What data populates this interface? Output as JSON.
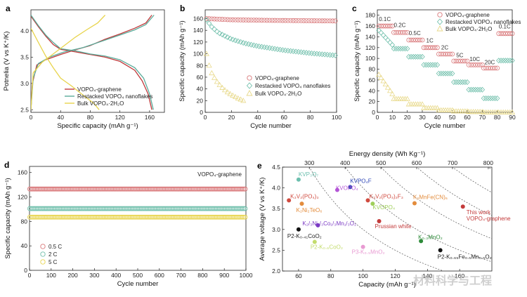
{
  "watermark": "材料科学与工程",
  "chart_data": [
    {
      "panel": "a",
      "type": "line",
      "xlabel": "Specific capacity (mAh g⁻¹)",
      "ylabel": "Potnelia (V vs K⁺/K)",
      "xlim": [
        0,
        180
      ],
      "ylim": [
        2.45,
        4.4
      ],
      "xticks": [
        "0",
        "40",
        "80",
        "120",
        "160"
      ],
      "yticks": [
        "2.5",
        "3.0",
        "3.5",
        "4.0"
      ],
      "legend_position": "bottom-right",
      "series": [
        {
          "name": "VOPO₄-graphene",
          "color": "#c0393b",
          "curves": [
            [
              [
                0,
                4.28
              ],
              [
                10,
                4.08
              ],
              [
                20,
                3.9
              ],
              [
                30,
                3.74
              ],
              [
                40,
                3.65
              ],
              [
                60,
                3.6
              ],
              [
                80,
                3.55
              ],
              [
                100,
                3.5
              ],
              [
                120,
                3.42
              ],
              [
                140,
                3.25
              ],
              [
                150,
                3.05
              ],
              [
                158,
                2.8
              ],
              [
                163,
                2.5
              ]
            ],
            [
              [
                0,
                2.5
              ],
              [
                2,
                3.0
              ],
              [
                8,
                3.35
              ],
              [
                20,
                3.45
              ],
              [
                40,
                3.55
              ],
              [
                60,
                3.64
              ],
              [
                80,
                3.72
              ],
              [
                100,
                3.84
              ],
              [
                120,
                3.94
              ],
              [
                140,
                4.05
              ],
              [
                155,
                4.15
              ],
              [
                163,
                4.3
              ]
            ]
          ]
        },
        {
          "name": "Restacked VOPO₄ nanoflakes",
          "color": "#5aab9a",
          "curves": [
            [
              [
                0,
                4.3
              ],
              [
                10,
                4.1
              ],
              [
                20,
                3.92
              ],
              [
                30,
                3.78
              ],
              [
                40,
                3.66
              ],
              [
                60,
                3.62
              ],
              [
                80,
                3.56
              ],
              [
                100,
                3.52
              ],
              [
                120,
                3.45
              ],
              [
                140,
                3.3
              ],
              [
                152,
                3.1
              ],
              [
                160,
                2.8
              ],
              [
                165,
                2.5
              ]
            ],
            [
              [
                0,
                2.5
              ],
              [
                3,
                3.1
              ],
              [
                10,
                3.38
              ],
              [
                25,
                3.5
              ],
              [
                45,
                3.6
              ],
              [
                70,
                3.68
              ],
              [
                95,
                3.8
              ],
              [
                120,
                3.92
              ],
              [
                140,
                4.02
              ],
              [
                155,
                4.12
              ],
              [
                166,
                4.3
              ]
            ]
          ]
        },
        {
          "name": "Bulk VOPO₄·2H₂O",
          "color": "#e8d44d",
          "curves": [
            [
              [
                0,
                4.05
              ],
              [
                10,
                3.78
              ],
              [
                20,
                3.52
              ],
              [
                30,
                3.3
              ],
              [
                40,
                3.1
              ],
              [
                55,
                2.95
              ],
              [
                70,
                2.78
              ],
              [
                85,
                2.62
              ],
              [
                92,
                2.5
              ]
            ],
            [
              [
                0,
                2.5
              ],
              [
                3,
                3.2
              ],
              [
                15,
                3.4
              ],
              [
                30,
                3.56
              ],
              [
                45,
                3.72
              ],
              [
                60,
                3.88
              ],
              [
                75,
                4.02
              ],
              [
                90,
                4.15
              ],
              [
                100,
                4.3
              ]
            ]
          ]
        }
      ]
    },
    {
      "panel": "b",
      "type": "scatter",
      "xlabel": "Cycle number",
      "ylabel": "Specific capacity (mAh g⁻¹)",
      "xlim": [
        0,
        100
      ],
      "ylim": [
        0,
        175
      ],
      "xticks": [
        "0",
        "20",
        "40",
        "60",
        "80",
        "100"
      ],
      "yticks": [
        "0",
        "20",
        "40",
        "60",
        "80",
        "100",
        "120",
        "140",
        "160"
      ],
      "legend_position": "center-right",
      "series": [
        {
          "name": "VOPO₄-graphene",
          "color": "#d9787a",
          "x_end": 100,
          "points": [
            [
              1,
              160
            ],
            [
              20,
              158
            ],
            [
              50,
              157
            ],
            [
              100,
              156
            ]
          ]
        },
        {
          "name": "Restacked VOPO₄ nanoflakes",
          "color": "#6fbfab",
          "x_end": 100,
          "points": [
            [
              1,
              158
            ],
            [
              5,
              146
            ],
            [
              10,
              136
            ],
            [
              20,
              125
            ],
            [
              30,
              118
            ],
            [
              40,
              113
            ],
            [
              60,
              106
            ],
            [
              80,
              101
            ],
            [
              100,
              97
            ]
          ]
        },
        {
          "name": "Bulk VOPO₄·2H₂O",
          "color": "#e8d98a",
          "x_end": 30,
          "points": [
            [
              1,
              100
            ],
            [
              3,
              80
            ],
            [
              5,
              67
            ],
            [
              8,
              55
            ],
            [
              12,
              44
            ],
            [
              16,
              36
            ],
            [
              20,
              30
            ],
            [
              25,
              24
            ],
            [
              30,
              19
            ]
          ]
        }
      ]
    },
    {
      "panel": "c",
      "type": "scatter",
      "xlabel": "Cycle number",
      "ylabel": "Specific capacity (mAh g⁻¹)",
      "xlim": [
        0,
        90
      ],
      "ylim": [
        0,
        190
      ],
      "xticks": [
        "0",
        "10",
        "20",
        "30",
        "40",
        "50",
        "60",
        "70",
        "80",
        "90"
      ],
      "yticks": [
        "0",
        "20",
        "40",
        "60",
        "80",
        "100",
        "120",
        "140",
        "160",
        "180"
      ],
      "rate_labels": [
        "0.1C",
        "0.2C",
        "0.5C",
        "1C",
        "2C",
        "5C",
        "10C",
        "20C",
        "0.1C"
      ],
      "legend_position": "top-right",
      "series": [
        {
          "name": "VOPO₄-graphene",
          "color": "#d9787a",
          "steps": [
            160,
            148,
            134,
            120,
            108,
            95,
            88,
            82,
            146
          ]
        },
        {
          "name": "Restacked VOPO₄ nanoflakes",
          "color": "#6fbfab",
          "steps": [
            152,
            118,
            103,
            88,
            72,
            56,
            42,
            26,
            96
          ]
        },
        {
          "name": "Bulk VOPO₄·2H₂O",
          "color": "#e8d98a",
          "steps": [
            70,
            25,
            15,
            8,
            4,
            2,
            1,
            0,
            0
          ]
        }
      ]
    },
    {
      "panel": "d",
      "type": "scatter",
      "title": "VOPO₄-graphene",
      "xlabel": "Cycle number",
      "ylabel": "Specific capacity (mAh g⁻¹)",
      "xlim": [
        0,
        1000
      ],
      "ylim": [
        0,
        170
      ],
      "xticks": [
        "0",
        "100",
        "200",
        "300",
        "400",
        "500",
        "600",
        "700",
        "800",
        "900",
        "1000"
      ],
      "yticks": [
        "0",
        "40",
        "80",
        "120",
        "160"
      ],
      "legend_position": "bottom-left",
      "series": [
        {
          "name": "0.5 C",
          "color": "#d9787a",
          "value": 133
        },
        {
          "name": "2 C",
          "color": "#6fbfab",
          "value": 101
        },
        {
          "name": "5 C",
          "color": "#e8d44d",
          "value": 87
        }
      ]
    },
    {
      "panel": "e",
      "type": "scatter",
      "xlabel": "Capacity (mAh g⁻¹)",
      "ylabel": "Average voltage (V vs K⁺/K)",
      "x2label": "Energy density (Wh Kg⁻¹)",
      "xlim": [
        50,
        180
      ],
      "ylim": [
        2.0,
        4.5
      ],
      "xticks": [
        "60",
        "80",
        "100",
        "120",
        "140",
        "160"
      ],
      "yticks": [
        "2.0",
        "2.5",
        "3.0",
        "3.5",
        "4.0",
        "4.5"
      ],
      "x2ticks": [
        "300",
        "400",
        "500",
        "600",
        "700",
        "800"
      ],
      "points": [
        {
          "label": "KVP₃O₇",
          "x": 60,
          "y": 4.2,
          "color": "#6cbfae"
        },
        {
          "label": "KVPO₄F",
          "x": 92,
          "y": 4.02,
          "color": "#2b44b5"
        },
        {
          "label": "K₃V₂(PO₄)₃",
          "x": 54,
          "y": 3.7,
          "color": "#d04a3f"
        },
        {
          "label": "KVOPO₄",
          "x": 84,
          "y": 3.95,
          "color": "#b455d6"
        },
        {
          "label": "K₃V₂(PO₄)₂F₃",
          "x": 103,
          "y": 3.7,
          "color": "#d04a3f"
        },
        {
          "label": "K₂MnFe(CN)₆",
          "x": 132,
          "y": 3.63,
          "color": "#e38c3c"
        },
        {
          "label": "K₂Ni₂TeO₆",
          "x": 62,
          "y": 3.62,
          "color": "#e38c3c"
        },
        {
          "label": "KVOPO₄",
          "x": 106,
          "y": 3.62,
          "color": "#9fcf5a"
        },
        {
          "label": "This work\nVOPO₄-graphene",
          "x": 162,
          "y": 3.55,
          "color": "#c33b3b"
        },
        {
          "label": "K₂/₃Ni₁/₃Co₁/₃Mn₁/₃O₂",
          "x": 72,
          "y": 3.1,
          "color": "#7b3ac4"
        },
        {
          "label": "Prussian white",
          "x": 110,
          "y": 3.2,
          "color": "#c33b3b"
        },
        {
          "label": "P2-K₀.₆CoO₂",
          "x": 70,
          "y": 2.7,
          "color": "#c3dc6c"
        },
        {
          "label": "P2-K₀.₄₁CoO₂",
          "x": 60,
          "y": 3.0,
          "color": "#111111"
        },
        {
          "label": "K₀.₃MnO₂",
          "x": 136,
          "y": 2.72,
          "color": "#2e8b3a"
        },
        {
          "label": "P3-K₀.₅MnO₂",
          "x": 100,
          "y": 2.58,
          "color": "#e89ad2"
        },
        {
          "label": "P2-K₀.₆₅Fe₀.₅Mn₀.₅O₂",
          "x": 148,
          "y": 2.5,
          "color": "#111111"
        }
      ],
      "energy_lines_wh_kg": [
        300,
        400,
        500,
        600,
        700,
        800
      ]
    }
  ]
}
